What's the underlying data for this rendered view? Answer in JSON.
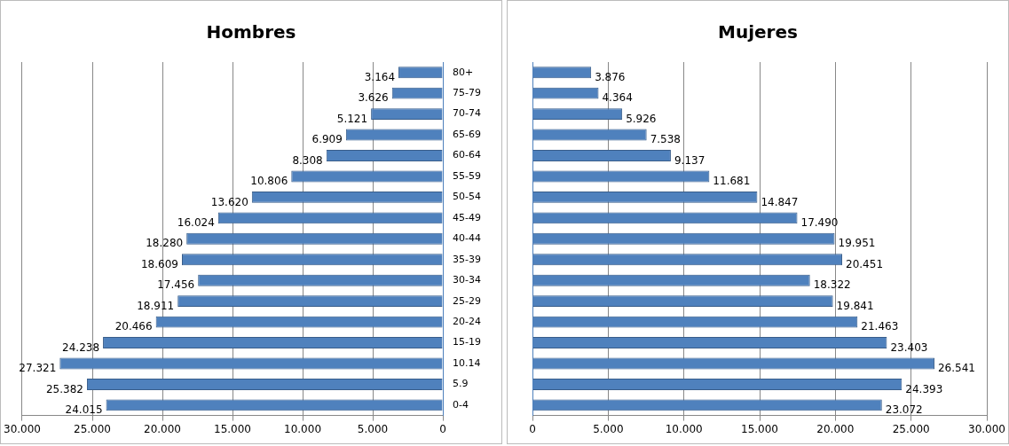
{
  "chart_data": [
    {
      "type": "bar",
      "title": "Hombres",
      "orientation": "horizontal",
      "categories": [
        "80+",
        "75-79",
        "70-74",
        "65-69",
        "60-64",
        "55-59",
        "50-54",
        "45-49",
        "40-44",
        "35-39",
        "30-34",
        "25-29",
        "20-24",
        "15-19",
        "10.14",
        "5.9",
        "0-4"
      ],
      "series": [
        {
          "color": "#4f81bd",
          "values": [
            3.164,
            3.626,
            5.121,
            6.909,
            8.308,
            10.806,
            13.62,
            16.024,
            18.28,
            18.609,
            17.456,
            18.911,
            20.466,
            24.238,
            27.321,
            25.382,
            24.015
          ],
          "value_labels": [
            "3.164",
            "3.626",
            "5.121",
            "6.909",
            "8.308",
            "10.806",
            "13.620",
            "16.024",
            "18.280",
            "18.609",
            "17.456",
            "18.911",
            "20.466",
            "24.238",
            "27.321",
            "25.382",
            "24.015"
          ]
        }
      ],
      "xlim": [
        30,
        0
      ],
      "xticks": [
        {
          "value": 30,
          "label": "30.000"
        },
        {
          "value": 25,
          "label": "25.000"
        },
        {
          "value": 20,
          "label": "20.000"
        },
        {
          "value": 15,
          "label": "15.000"
        },
        {
          "value": 10,
          "label": "10.000"
        },
        {
          "value": 5,
          "label": "5.000"
        },
        0
      ],
      "grid": "x"
    },
    {
      "type": "bar",
      "title": "Mujeres",
      "orientation": "horizontal",
      "tick_labels": "x",
      "categories": [
        null,
        null,
        null,
        null,
        null,
        null,
        null,
        null,
        null,
        null,
        null,
        null,
        null,
        null,
        null,
        null,
        null
      ],
      "series": [
        {
          "color": "#4f81bd",
          "values": [
            3.876,
            4.364,
            5.926,
            7.538,
            9.137,
            11.681,
            14.847,
            17.49,
            19.951,
            20.451,
            18.322,
            19.841,
            21.463,
            23.403,
            26.541,
            24.393,
            23.072
          ],
          "value_labels": [
            "3.876",
            "4.364",
            "5.926",
            "7.538",
            "9.137",
            "11.681",
            "14.847",
            "17.490",
            "19.951",
            "20.451",
            "18.322",
            "19.841",
            "21.463",
            "23.403",
            "26.541",
            "24.393",
            "23.072"
          ]
        }
      ],
      "xlim": [
        0,
        30
      ],
      "xticks": [
        0,
        {
          "value": 5,
          "label": "5.000"
        },
        {
          "value": 10,
          "label": "10.000"
        },
        {
          "value": 15,
          "label": "15.000"
        },
        {
          "value": 20,
          "label": "20.000"
        },
        {
          "value": 25,
          "label": "25.000"
        },
        {
          "value": 30,
          "label": "30.000"
        }
      ],
      "grid": "x"
    }
  ]
}
